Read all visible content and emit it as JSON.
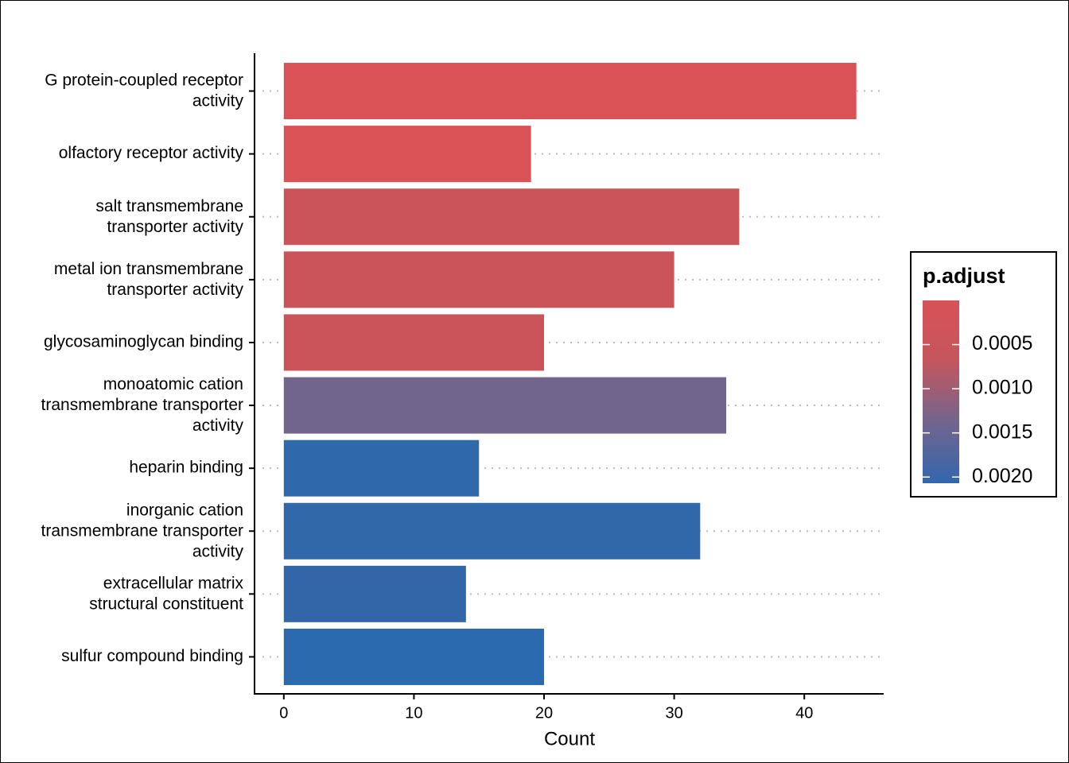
{
  "chart_data": {
    "type": "bar",
    "orientation": "horizontal",
    "x_label": "Count",
    "categories": [
      "G protein-coupled receptor\nactivity",
      "olfactory receptor activity",
      "salt transmembrane\ntransporter activity",
      "metal ion transmembrane\ntransporter activity",
      "glycosaminoglycan binding",
      "monoatomic cation\ntransmembrane transporter\nactivity",
      "heparin binding",
      "inorganic cation\ntransmembrane transporter\nactivity",
      "extracellular matrix\nstructural constituent",
      "sulfur compound binding"
    ],
    "values": [
      44,
      19,
      35,
      30,
      20,
      34,
      15,
      32,
      14,
      20
    ],
    "colors": [
      "#d95256",
      "#d95256",
      "#c9555b",
      "#c9555b",
      "#c9555b",
      "#72658d",
      "#3069ab",
      "#3168aa",
      "#3167a8",
      "#2b6aae"
    ],
    "xlim": [
      -2.25,
      46.1
    ],
    "xticks": [
      0,
      10,
      20,
      30,
      40
    ],
    "grid": true,
    "colorbar": {
      "title": "p.adjust",
      "lim": [
        0,
        0.00207
      ],
      "colors": [
        "#d95256",
        "#c4565e",
        "#72658d",
        "#3366ae"
      ],
      "ticks": [
        {
          "value": 0.0005,
          "label": "0.0005"
        },
        {
          "value": 0.001,
          "label": "0.0010"
        },
        {
          "value": 0.0015,
          "label": "0.0015"
        },
        {
          "value": 0.002,
          "label": "0.0020"
        }
      ]
    }
  }
}
